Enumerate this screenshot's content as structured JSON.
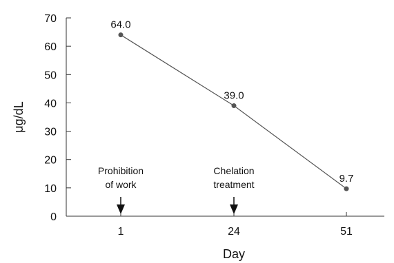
{
  "chart_data": {
    "type": "line",
    "title": "",
    "xlabel": "Day",
    "ylabel": "μg/dL",
    "x": [
      "1",
      "24",
      "51"
    ],
    "series": [
      {
        "values": [
          64.0,
          39.0,
          9.7
        ],
        "labels": [
          "64.0",
          "39.0",
          "9.7"
        ],
        "color": "#555555"
      }
    ],
    "ylim": [
      0,
      70
    ],
    "yticks": [
      "0",
      "10",
      "20",
      "30",
      "40",
      "50",
      "60",
      "70"
    ],
    "grid": false,
    "annotations": [
      {
        "x": "1",
        "lines": [
          "Prohibition",
          "of work"
        ]
      },
      {
        "x": "24",
        "lines": [
          "Chelation",
          "treatment"
        ]
      }
    ]
  }
}
